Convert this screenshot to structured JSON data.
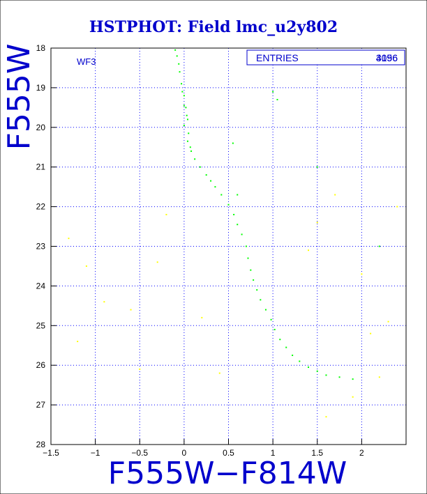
{
  "chart_data": {
    "type": "scatter",
    "title": "HSTPHOT: Field lmc_u2y802",
    "xlabel": "F555W−F814W",
    "ylabel": "F555W",
    "panel_label": "WF3",
    "stats_label": "ENTRIES",
    "stats_value_a": "4196",
    "stats_value_b": "3056",
    "xlim": [
      -1.5,
      2.5
    ],
    "ylim": [
      28,
      18
    ],
    "x_ticks": [
      -1.5,
      -1,
      -0.5,
      0,
      0.5,
      1,
      1.5,
      2
    ],
    "x_tick_labels": [
      "−1.5",
      "−1",
      "−0.5",
      "0",
      "0.5",
      "1",
      "1.5",
      "2"
    ],
    "y_ticks": [
      18,
      19,
      20,
      21,
      22,
      23,
      24,
      25,
      26,
      27,
      28
    ],
    "y_tick_labels": [
      "18",
      "19",
      "20",
      "21",
      "22",
      "23",
      "24",
      "25",
      "26",
      "27",
      "28"
    ],
    "grid": true,
    "colors": {
      "title": "#0000cc",
      "axis": "#0000cc",
      "grid": "#0000ff",
      "main_sequence": "#00ff00",
      "field": "#ffff00"
    },
    "series": [
      {
        "color_key": "main_sequence",
        "values": [
          [
            -0.1,
            18.05
          ],
          [
            -0.08,
            18.2
          ],
          [
            -0.06,
            18.4
          ],
          [
            -0.05,
            18.6
          ],
          [
            -0.03,
            18.9
          ],
          [
            -0.02,
            19.1
          ],
          [
            0.0,
            19.2
          ],
          [
            0.0,
            19.45
          ],
          [
            0.02,
            19.5
          ],
          [
            0.03,
            19.7
          ],
          [
            0.04,
            19.8
          ],
          [
            0.0,
            19.95
          ],
          [
            0.05,
            20.15
          ],
          [
            0.04,
            20.35
          ],
          [
            0.07,
            20.5
          ],
          [
            0.08,
            20.6
          ],
          [
            0.12,
            20.8
          ],
          [
            0.18,
            21.0
          ],
          [
            0.25,
            21.2
          ],
          [
            0.3,
            21.35
          ],
          [
            0.35,
            21.5
          ],
          [
            0.42,
            21.7
          ],
          [
            0.5,
            21.95
          ],
          [
            0.56,
            22.2
          ],
          [
            0.6,
            22.45
          ],
          [
            0.65,
            22.7
          ],
          [
            0.7,
            23.0
          ],
          [
            0.72,
            23.3
          ],
          [
            0.75,
            23.6
          ],
          [
            0.78,
            23.85
          ],
          [
            0.82,
            24.1
          ],
          [
            0.86,
            24.35
          ],
          [
            0.92,
            24.6
          ],
          [
            0.98,
            24.85
          ],
          [
            1.02,
            25.1
          ],
          [
            1.08,
            25.35
          ],
          [
            1.15,
            25.55
          ],
          [
            1.22,
            25.75
          ],
          [
            1.3,
            25.9
          ],
          [
            1.4,
            26.05
          ],
          [
            1.5,
            26.15
          ],
          [
            1.6,
            26.25
          ],
          [
            1.75,
            26.3
          ],
          [
            1.9,
            26.35
          ],
          [
            1.0,
            19.1
          ],
          [
            1.05,
            19.3
          ],
          [
            0.55,
            20.4
          ],
          [
            0.6,
            21.7
          ],
          [
            1.5,
            21.0
          ],
          [
            2.2,
            23.0
          ]
        ]
      },
      {
        "color_key": "field",
        "values": [
          [
            -1.3,
            22.8
          ],
          [
            -1.1,
            23.5
          ],
          [
            -0.9,
            24.4
          ],
          [
            -0.6,
            24.6
          ],
          [
            -0.3,
            23.4
          ],
          [
            -1.2,
            25.4
          ],
          [
            0.2,
            24.8
          ],
          [
            -0.5,
            26.1
          ],
          [
            1.4,
            23.1
          ],
          [
            1.5,
            22.4
          ],
          [
            1.7,
            21.7
          ],
          [
            2.0,
            23.7
          ],
          [
            2.3,
            24.9
          ],
          [
            1.9,
            26.8
          ],
          [
            2.4,
            22.0
          ],
          [
            2.2,
            26.3
          ],
          [
            1.6,
            27.3
          ],
          [
            -0.2,
            22.2
          ],
          [
            0.4,
            26.2
          ],
          [
            2.1,
            25.2
          ]
        ]
      }
    ]
  }
}
